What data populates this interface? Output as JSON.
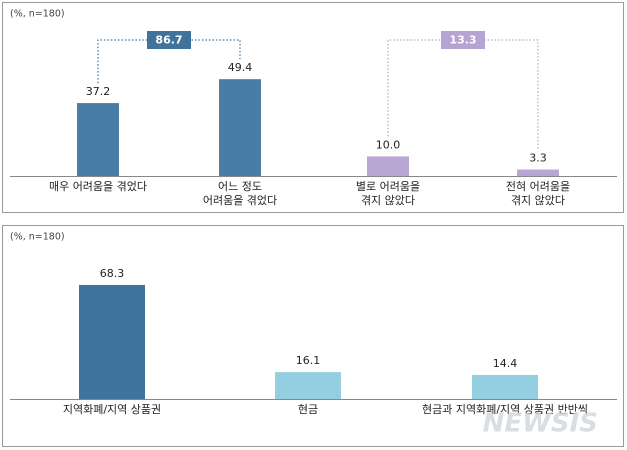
{
  "chart_data": [
    {
      "type": "bar",
      "subtitle": "(%, n=180)",
      "categories": [
        "매우 어려움을 겪었다",
        "어느 정도\n어려움을 겪었다",
        "별로 어려움을\n겪지 않았다",
        "전혀 어려움을\n겪지 않았다"
      ],
      "values": [
        37.2,
        49.4,
        10.0,
        3.3
      ],
      "value_labels": [
        "37.2",
        "49.4",
        "10.0",
        "3.3"
      ],
      "colors": [
        "#4a7da6",
        "#4a7da6",
        "#b9a6d3",
        "#b9a6d3"
      ],
      "summaries": [
        {
          "value": 86.7,
          "color": "#3f739c"
        },
        {
          "value": 13.3,
          "color": "#b7a3d1"
        }
      ],
      "ylim": [
        0,
        60
      ]
    },
    {
      "type": "bar",
      "subtitle": "(%, n=180)",
      "categories": [
        "지역화폐/지역 상품권",
        "현금",
        "현금과 지역화폐/지역 상품권 반반씩"
      ],
      "values": [
        68.3,
        16.1,
        14.4
      ],
      "colors": [
        "#3f739c",
        "#93cfe0",
        "#93cfe0"
      ],
      "ylim": [
        0,
        80
      ]
    }
  ],
  "watermark": "NEWSIS"
}
